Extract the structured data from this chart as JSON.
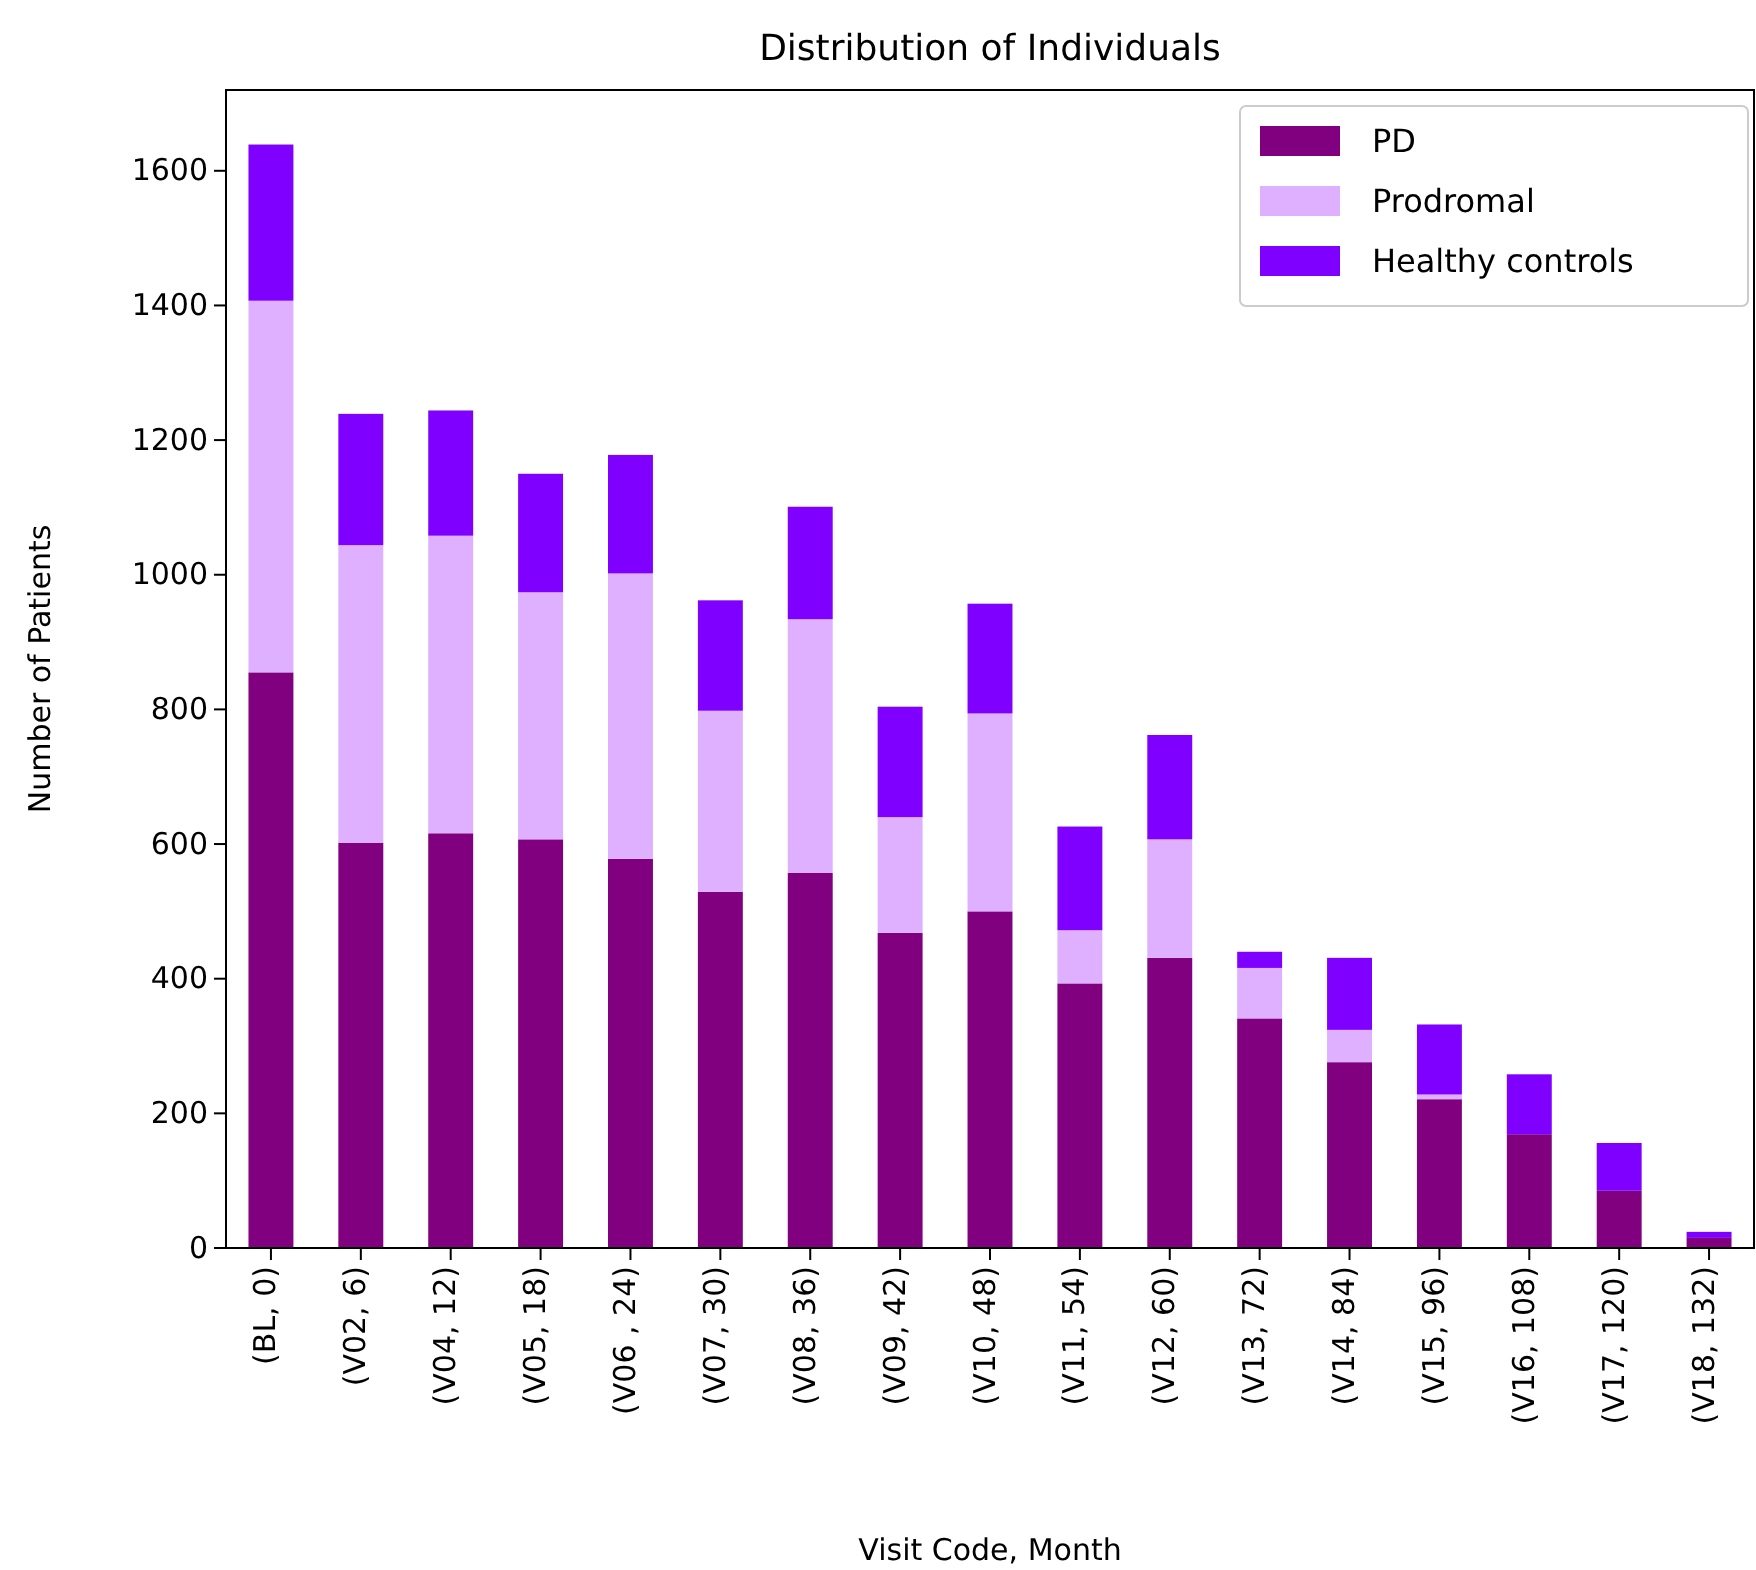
{
  "chart_data": {
    "type": "bar",
    "title": "Distribution of Individuals",
    "xlabel": "Visit Code, Month",
    "ylabel": "Number of Patients",
    "categories": [
      "(BL, 0)",
      "(V02, 6)",
      "(V04, 12)",
      "(V05, 18)",
      "(V06 , 24)",
      "(V07, 30)",
      "(V08, 36)",
      "(V09, 42)",
      "(V10, 48)",
      "(V11, 54)",
      "(V12, 60)",
      "(V13, 72)",
      "(V14, 84)",
      "(V15, 96)",
      "(V16, 108)",
      "(V17, 120)",
      "(V18, 132)"
    ],
    "stacked": true,
    "series": [
      {
        "name": "PD",
        "color": "#800080",
        "values": [
          855,
          602,
          616,
          607,
          578,
          529,
          557,
          468,
          500,
          393,
          431,
          341,
          276,
          221,
          169,
          85,
          15
        ]
      },
      {
        "name": "Prodromal",
        "color": "#dfb0ff",
        "values": [
          552,
          442,
          442,
          367,
          424,
          269,
          377,
          172,
          294,
          79,
          176,
          75,
          48,
          7,
          0,
          0,
          0
        ]
      },
      {
        "name": "Healthy controls",
        "color": "#8000ff",
        "values": [
          232,
          195,
          186,
          176,
          176,
          164,
          167,
          164,
          163,
          154,
          155,
          24,
          107,
          104,
          89,
          71,
          9
        ]
      }
    ],
    "ylim": [
      0,
      1720
    ],
    "yticks": [
      0,
      200,
      400,
      600,
      800,
      1000,
      1200,
      1400,
      1600
    ],
    "grid": false,
    "legend": "top right"
  }
}
